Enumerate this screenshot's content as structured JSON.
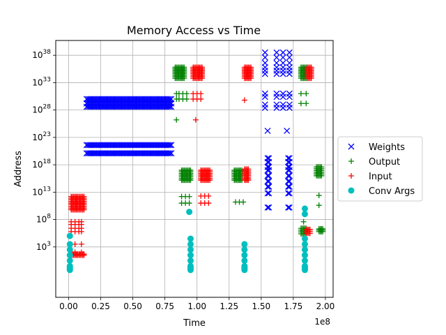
{
  "chart_data": {
    "type": "scatter",
    "title": "Memory Access vs Time",
    "xlabel": "Time",
    "ylabel": "Address",
    "x_offset_label": "1e8",
    "x_scale": "linear",
    "y_scale": "log",
    "xlim": [
      -0.1,
      2.06
    ],
    "ylim_log10_exponent": [
      -6.2,
      40.7
    ],
    "x_ticks": [
      0.0,
      0.25,
      0.5,
      0.75,
      1.0,
      1.25,
      1.5,
      1.75,
      2.0
    ],
    "x_tick_labels": [
      "0.00",
      "0.25",
      "0.50",
      "0.75",
      "1.00",
      "1.25",
      "1.50",
      "1.75",
      "2.00"
    ],
    "y_ticks_log10": [
      3,
      8,
      13,
      18,
      23,
      28,
      33,
      38
    ],
    "y_tick_base": "10",
    "grid": true,
    "legend": {
      "position": "center-right",
      "entries": [
        {
          "name": "Weights",
          "color": "#0000ff",
          "marker": "x"
        },
        {
          "name": "Output",
          "color": "#008000",
          "marker": "+"
        },
        {
          "name": "Input",
          "color": "#ff0000",
          "marker": "+"
        },
        {
          "name": "Conv Args",
          "color": "#00bfbf",
          "marker": "o"
        }
      ]
    },
    "series": [
      {
        "name": "Weights",
        "color": "#0000ff",
        "marker": "x",
        "bands": [
          {
            "x_range": [
              0.14,
              0.8
            ],
            "log10_y": [
              30.0,
              29.2,
              28.6
            ]
          },
          {
            "x_range": [
              0.14,
              0.8
            ],
            "log10_y": [
              21.6,
              20.1
            ]
          }
        ],
        "points": [
          {
            "x": [
              1.53,
              1.62
            ],
            "log10_y": [
              38.5,
              37.6,
              36.6,
              35.8,
              35.2,
              34.6,
              31.0,
              30.4,
              29.0,
              28.4
            ]
          },
          {
            "x": [
              1.67,
              1.72
            ],
            "log10_y": [
              38.5,
              37.6,
              36.6,
              35.8,
              35.2,
              34.6,
              31.0,
              30.4,
              29.0,
              28.4
            ]
          },
          {
            "x": [
              1.55
            ],
            "log10_y": [
              24.2
            ]
          },
          {
            "x": [
              1.7
            ],
            "log10_y": [
              24.2
            ]
          },
          {
            "x": [
              1.55,
              1.56
            ],
            "log10_y": [
              19.2,
              18.5,
              17.6,
              17.0,
              16.0,
              15.0,
              14.0,
              12.8,
              10.2
            ]
          },
          {
            "x": [
              1.71,
              1.72
            ],
            "log10_y": [
              19.2,
              18.5,
              17.6,
              17.0,
              16.0,
              15.0,
              14.0,
              12.8,
              10.2
            ]
          }
        ]
      },
      {
        "name": "Output",
        "color": "#008000",
        "marker": "+",
        "clusters": [
          {
            "x_range": [
              0.83,
              0.9
            ],
            "log10_y_range": [
              33.8,
              35.8
            ]
          },
          {
            "x_range": [
              0.88,
              0.95
            ],
            "log10_y_range": [
              15.2,
              17.0
            ]
          },
          {
            "x_range": [
              1.29,
              1.35
            ],
            "log10_y_range": [
              15.2,
              17.0
            ]
          },
          {
            "x_range": [
              1.81,
              1.86
            ],
            "log10_y_range": [
              33.8,
              35.8
            ]
          },
          {
            "x_range": [
              1.81,
              1.85
            ],
            "log10_y_range": [
              5.4,
              6.4
            ]
          },
          {
            "x_range": [
              1.93,
              1.97
            ],
            "log10_y_range": [
              16.0,
              17.6
            ]
          },
          {
            "x_range": [
              1.95,
              1.98
            ],
            "log10_y_range": [
              5.8,
              6.3
            ]
          }
        ],
        "points": [
          {
            "x": [
              0.84,
              0.86,
              0.89,
              0.92
            ],
            "log10_y": [
              31.0,
              30.0
            ]
          },
          {
            "x": [
              0.84
            ],
            "log10_y": [
              26.2
            ]
          },
          {
            "x": [
              0.88,
              0.91,
              0.94
            ],
            "log10_y": [
              12.2,
              11.0
            ]
          },
          {
            "x": [
              1.3,
              1.33,
              1.36
            ],
            "log10_y": [
              11.2
            ]
          },
          {
            "x": [
              1.81,
              1.85
            ],
            "log10_y": [
              31.0,
              29.2
            ]
          },
          {
            "x": [
              1.83
            ],
            "log10_y": [
              7.6
            ]
          },
          {
            "x": [
              1.95
            ],
            "log10_y": [
              12.4,
              10.6
            ]
          }
        ]
      },
      {
        "name": "Input",
        "color": "#ff0000",
        "marker": "+",
        "clusters": [
          {
            "x_range": [
              0.02,
              0.12
            ],
            "log10_y_range": [
              9.8,
              12.2
            ]
          },
          {
            "x_range": [
              0.02,
              0.12
            ],
            "log10_y_range": [
              1.5,
              1.7
            ]
          },
          {
            "x_range": [
              0.97,
              1.04
            ],
            "log10_y_range": [
              33.8,
              35.8
            ]
          },
          {
            "x_range": [
              1.03,
              1.1
            ],
            "log10_y_range": [
              15.2,
              17.0
            ]
          },
          {
            "x_range": [
              1.37,
              1.42
            ],
            "log10_y_range": [
              33.8,
              35.8
            ]
          },
          {
            "x_range": [
              1.37,
              1.4
            ],
            "log10_y_range": [
              15.2,
              17.2
            ]
          },
          {
            "x_range": [
              1.86,
              1.89
            ],
            "log10_y_range": [
              33.8,
              35.8
            ]
          },
          {
            "x_range": [
              1.85,
              1.88
            ],
            "log10_y_range": [
              5.5,
              6.2
            ]
          }
        ],
        "points": [
          {
            "x": [
              0.02,
              0.05,
              0.08,
              0.1
            ],
            "log10_y": [
              7.6,
              7.1,
              6.4,
              5.8
            ]
          },
          {
            "x": [
              0.05,
              0.1
            ],
            "log10_y": [
              3.5,
              2.0
            ]
          },
          {
            "x": [
              0.97,
              1.0,
              1.03
            ],
            "log10_y": [
              31.0,
              30.0
            ]
          },
          {
            "x": [
              0.99
            ],
            "log10_y": [
              26.2
            ]
          },
          {
            "x": [
              1.03,
              1.06,
              1.09
            ],
            "log10_y": [
              12.3,
              11.0
            ]
          },
          {
            "x": [
              1.37
            ],
            "log10_y": [
              29.8
            ]
          }
        ]
      },
      {
        "name": "Conv Args",
        "color": "#00bfbf",
        "marker": "o",
        "columns": [
          {
            "x": 0.01,
            "log10_y": [
              -0.5,
              -0.8,
              -1.0,
              -1.2,
              0.5,
              1.5,
              2.5,
              3.5,
              5.0
            ]
          },
          {
            "x": 0.95,
            "log10_y": [
              -0.5,
              -0.8,
              -1.0,
              -1.2,
              0.5,
              1.5,
              2.5,
              3.5,
              4.5
            ]
          },
          {
            "x": 0.94,
            "log10_y": [
              9.4
            ]
          },
          {
            "x": 1.37,
            "log10_y": [
              -0.5,
              -0.8,
              -1.0,
              -1.2,
              0.5,
              1.5,
              2.5,
              3.5
            ]
          },
          {
            "x": 1.84,
            "log10_y": [
              -0.5,
              -0.8,
              -1.0,
              -1.2,
              0.5,
              1.5,
              2.5,
              3.5,
              4.5,
              9.0,
              10.0
            ]
          }
        ]
      }
    ]
  }
}
